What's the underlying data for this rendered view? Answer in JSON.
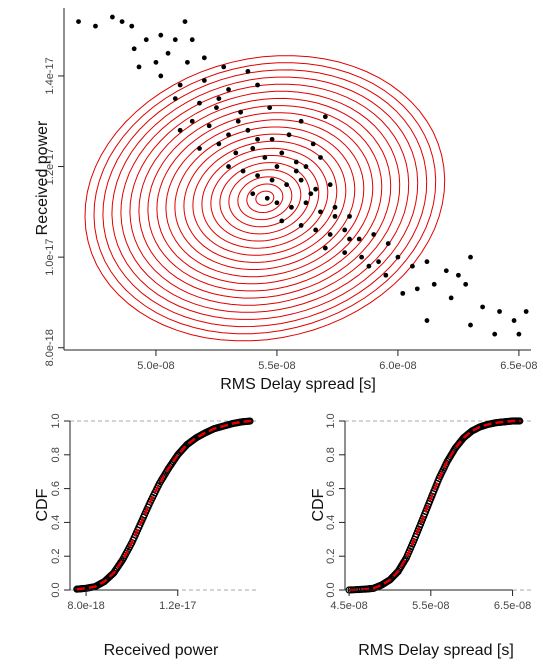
{
  "chart_data": [
    {
      "type": "scatter",
      "xlabel": "RMS Delay spread [s]",
      "ylabel": "Received power",
      "xlim": [
        4.62e-08,
        6.55e-08
      ],
      "ylim": [
        7.95e-18,
        1.55e-17
      ],
      "xticks": [
        5e-08,
        5.5e-08,
        6e-08,
        6.5e-08
      ],
      "xtick_labels": [
        "5.0e-08",
        "5.5e-08",
        "6.0e-08",
        "6.5e-08"
      ],
      "yticks": [
        8e-18,
        1e-17,
        1.2e-17,
        1.4e-17
      ],
      "ytick_labels": [
        "8.0e-18",
        "1.0e-17",
        "1.2e-17",
        "1.4e-17"
      ],
      "point_color": "#000000",
      "contour_color": "#e00000",
      "contour_center": [
        5.45e-08,
        1.13e-17
      ],
      "contour_count": 20,
      "points": [
        [
          4.75e-08,
          1.51e-17
        ],
        [
          4.82e-08,
          1.53e-17
        ],
        [
          4.86e-08,
          1.52e-17
        ],
        [
          4.9e-08,
          1.51e-17
        ],
        [
          4.91e-08,
          1.46e-17
        ],
        [
          4.96e-08,
          1.48e-17
        ],
        [
          5.02e-08,
          1.49e-17
        ],
        [
          5.08e-08,
          1.48e-17
        ],
        [
          5.15e-08,
          1.48e-17
        ],
        [
          4.93e-08,
          1.42e-17
        ],
        [
          5e-08,
          1.43e-17
        ],
        [
          5.05e-08,
          1.45e-17
        ],
        [
          5.13e-08,
          1.43e-17
        ],
        [
          5.2e-08,
          1.44e-17
        ],
        [
          5.28e-08,
          1.42e-17
        ],
        [
          5.02e-08,
          1.4e-17
        ],
        [
          5.1e-08,
          1.38e-17
        ],
        [
          5.2e-08,
          1.39e-17
        ],
        [
          5.3e-08,
          1.37e-17
        ],
        [
          5.42e-08,
          1.38e-17
        ],
        [
          5.08e-08,
          1.35e-17
        ],
        [
          5.18e-08,
          1.34e-17
        ],
        [
          5.25e-08,
          1.33e-17
        ],
        [
          5.35e-08,
          1.32e-17
        ],
        [
          5.47e-08,
          1.33e-17
        ],
        [
          5.6e-08,
          1.3e-17
        ],
        [
          5.7e-08,
          1.31e-17
        ],
        [
          5.15e-08,
          1.3e-17
        ],
        [
          5.22e-08,
          1.29e-17
        ],
        [
          5.3e-08,
          1.27e-17
        ],
        [
          5.38e-08,
          1.28e-17
        ],
        [
          5.48e-08,
          1.26e-17
        ],
        [
          5.55e-08,
          1.27e-17
        ],
        [
          5.65e-08,
          1.25e-17
        ],
        [
          5.1e-08,
          1.28e-17
        ],
        [
          5.18e-08,
          1.24e-17
        ],
        [
          5.26e-08,
          1.25e-17
        ],
        [
          5.33e-08,
          1.23e-17
        ],
        [
          5.4e-08,
          1.24e-17
        ],
        [
          5.45e-08,
          1.22e-17
        ],
        [
          5.52e-08,
          1.23e-17
        ],
        [
          5.58e-08,
          1.21e-17
        ],
        [
          5.62e-08,
          1.2e-17
        ],
        [
          5.68e-08,
          1.22e-17
        ],
        [
          5.3e-08,
          1.2e-17
        ],
        [
          5.36e-08,
          1.19e-17
        ],
        [
          5.42e-08,
          1.18e-17
        ],
        [
          5.48e-08,
          1.17e-17
        ],
        [
          5.54e-08,
          1.16e-17
        ],
        [
          5.6e-08,
          1.17e-17
        ],
        [
          5.66e-08,
          1.15e-17
        ],
        [
          5.72e-08,
          1.16e-17
        ],
        [
          5.4e-08,
          1.14e-17
        ],
        [
          5.46e-08,
          1.13e-17
        ],
        [
          5.5e-08,
          1.12e-17
        ],
        [
          5.56e-08,
          1.11e-17
        ],
        [
          5.62e-08,
          1.12e-17
        ],
        [
          5.68e-08,
          1.1e-17
        ],
        [
          5.74e-08,
          1.11e-17
        ],
        [
          5.8e-08,
          1.09e-17
        ],
        [
          5.52e-08,
          1.08e-17
        ],
        [
          5.6e-08,
          1.07e-17
        ],
        [
          5.66e-08,
          1.06e-17
        ],
        [
          5.72e-08,
          1.05e-17
        ],
        [
          5.78e-08,
          1.06e-17
        ],
        [
          5.84e-08,
          1.04e-17
        ],
        [
          5.9e-08,
          1.05e-17
        ],
        [
          5.96e-08,
          1.03e-17
        ],
        [
          5.7e-08,
          1.02e-17
        ],
        [
          5.78e-08,
          1.01e-17
        ],
        [
          5.85e-08,
          1e-17
        ],
        [
          5.92e-08,
          9.9e-18
        ],
        [
          6e-08,
          1e-17
        ],
        [
          6.06e-08,
          9.8e-18
        ],
        [
          6.12e-08,
          9.9e-18
        ],
        [
          6.2e-08,
          9.7e-18
        ],
        [
          6.3e-08,
          1e-17
        ],
        [
          6.25e-08,
          9.6e-18
        ],
        [
          6.08e-08,
          9.3e-18
        ],
        [
          6.02e-08,
          9.2e-18
        ],
        [
          6.15e-08,
          9.4e-18
        ],
        [
          6.22e-08,
          9.1e-18
        ],
        [
          6.28e-08,
          9.4e-18
        ],
        [
          6.35e-08,
          8.9e-18
        ],
        [
          6.42e-08,
          8.8e-18
        ],
        [
          6.48e-08,
          8.6e-18
        ],
        [
          6.53e-08,
          8.8e-18
        ],
        [
          6.4e-08,
          8.3e-18
        ],
        [
          6.5e-08,
          8.3e-18
        ],
        [
          6.12e-08,
          8.6e-18
        ],
        [
          6.3e-08,
          8.5e-18
        ],
        [
          5.95e-08,
          9.6e-18
        ],
        [
          5.88e-08,
          9.8e-18
        ],
        [
          5.8e-08,
          1.04e-17
        ],
        [
          5.74e-08,
          1.09e-17
        ],
        [
          5.64e-08,
          1.14e-17
        ],
        [
          5.58e-08,
          1.19e-17
        ],
        [
          5.5e-08,
          1.2e-17
        ],
        [
          5.42e-08,
          1.26e-17
        ],
        [
          5.34e-08,
          1.3e-17
        ],
        [
          5.26e-08,
          1.35e-17
        ],
        [
          5.38e-08,
          1.41e-17
        ],
        [
          4.68e-08,
          1.52e-17
        ],
        [
          5.12e-08,
          1.52e-17
        ]
      ]
    },
    {
      "type": "line",
      "subtype": "empirical-cdf-vs-fitted",
      "xlabel": "Received power",
      "ylabel": "CDF",
      "xlim": [
        7.3e-18,
        1.55e-17
      ],
      "ylim": [
        0,
        1
      ],
      "xticks": [
        8e-18,
        1.2e-17
      ],
      "xtick_labels": [
        "8.0e-18",
        "1.2e-17"
      ],
      "yticks": [
        0.0,
        0.2,
        0.4,
        0.6,
        0.8,
        1.0
      ],
      "ytick_labels": [
        "0.0",
        "0.2",
        "0.4",
        "0.6",
        "0.8",
        "1.0"
      ],
      "reference_lines_y": [
        0,
        1
      ],
      "empirical_color": "#000000",
      "fitted_color": "#e00000",
      "series": [
        {
          "x": [
            7.6e-18,
            8e-18,
            8.4e-18,
            8.8e-18,
            9.2e-18,
            9.6e-18,
            1e-17,
            1.04e-17,
            1.08e-17,
            1.12e-17,
            1.16e-17,
            1.2e-17,
            1.24e-17,
            1.28e-17,
            1.32e-17,
            1.36e-17,
            1.4e-17,
            1.44e-17,
            1.48e-17,
            1.52e-17
          ],
          "y": [
            0.005,
            0.01,
            0.02,
            0.05,
            0.1,
            0.18,
            0.28,
            0.4,
            0.52,
            0.63,
            0.72,
            0.8,
            0.86,
            0.9,
            0.93,
            0.955,
            0.97,
            0.985,
            0.995,
            1.0
          ]
        }
      ]
    },
    {
      "type": "line",
      "subtype": "empirical-cdf-vs-fitted",
      "xlabel": "RMS Delay spread [s]",
      "ylabel": "CDF",
      "xlim": [
        4.45e-08,
        6.75e-08
      ],
      "ylim": [
        0,
        1
      ],
      "xticks": [
        4.5e-08,
        5.5e-08,
        6.5e-08
      ],
      "xtick_labels": [
        "4.5e-08",
        "5.5e-08",
        "6.5e-08"
      ],
      "yticks": [
        0.0,
        0.2,
        0.4,
        0.6,
        0.8,
        1.0
      ],
      "ytick_labels": [
        "0.0",
        "0.2",
        "0.4",
        "0.6",
        "0.8",
        "1.0"
      ],
      "reference_lines_y": [
        0,
        1
      ],
      "empirical_color": "#000000",
      "fitted_color": "#e00000",
      "series": [
        {
          "x": [
            4.5e-08,
            4.7e-08,
            4.8e-08,
            4.9e-08,
            5e-08,
            5.1e-08,
            5.2e-08,
            5.3e-08,
            5.4e-08,
            5.5e-08,
            5.6e-08,
            5.7e-08,
            5.8e-08,
            5.9e-08,
            6e-08,
            6.1e-08,
            6.2e-08,
            6.3e-08,
            6.4e-08,
            6.5e-08,
            6.6e-08
          ],
          "y": [
            0.0,
            0.005,
            0.01,
            0.03,
            0.06,
            0.11,
            0.19,
            0.3,
            0.42,
            0.54,
            0.66,
            0.76,
            0.84,
            0.9,
            0.94,
            0.965,
            0.98,
            0.99,
            0.995,
            1.0,
            1.0
          ]
        }
      ]
    }
  ]
}
